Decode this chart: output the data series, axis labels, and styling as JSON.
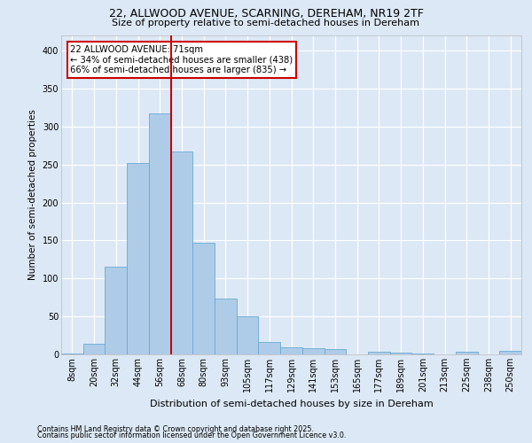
{
  "title1": "22, ALLWOOD AVENUE, SCARNING, DEREHAM, NR19 2TF",
  "title2": "Size of property relative to semi-detached houses in Dereham",
  "xlabel": "Distribution of semi-detached houses by size in Dereham",
  "ylabel": "Number of semi-detached properties",
  "bar_color": "#aecce8",
  "bar_edge_color": "#6aaad4",
  "categories": [
    "8sqm",
    "20sqm",
    "32sqm",
    "44sqm",
    "56sqm",
    "68sqm",
    "80sqm",
    "93sqm",
    "105sqm",
    "117sqm",
    "129sqm",
    "141sqm",
    "153sqm",
    "165sqm",
    "177sqm",
    "189sqm",
    "201sqm",
    "213sqm",
    "225sqm",
    "238sqm",
    "250sqm"
  ],
  "values": [
    1,
    14,
    116,
    252,
    317,
    267,
    147,
    74,
    50,
    16,
    9,
    8,
    7,
    0,
    3,
    2,
    1,
    0,
    4,
    0,
    5
  ],
  "ylim": [
    0,
    420
  ],
  "yticks": [
    0,
    50,
    100,
    150,
    200,
    250,
    300,
    350,
    400
  ],
  "vline_x": 4.5,
  "annotation_text": "22 ALLWOOD AVENUE: 71sqm\n← 34% of semi-detached houses are smaller (438)\n66% of semi-detached houses are larger (835) →",
  "footer1": "Contains HM Land Registry data © Crown copyright and database right 2025.",
  "footer2": "Contains public sector information licensed under the Open Government Licence v3.0.",
  "background_color": "#dce8f5",
  "plot_bg_color": "#dce8f5",
  "grid_color": "#ffffff",
  "annotation_box_color": "#ffffff",
  "annotation_border_color": "#cc0000",
  "vline_color": "#cc0000",
  "title1_fontsize": 9.0,
  "title2_fontsize": 8.0,
  "ylabel_fontsize": 7.5,
  "xlabel_fontsize": 8.0,
  "tick_fontsize": 7.0,
  "footer_fontsize": 5.8
}
